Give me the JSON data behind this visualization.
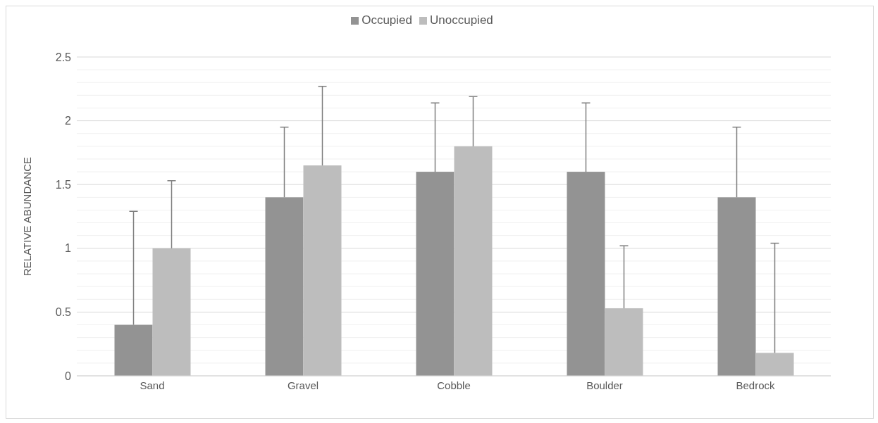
{
  "chart_data": {
    "type": "bar",
    "ylabel": "RELATIVE ABUNDANCE",
    "categories": [
      "Sand",
      "Gravel",
      "Cobble",
      "Boulder",
      "Bedrock"
    ],
    "series": [
      {
        "name": "Occupied",
        "color": "#939393",
        "values": [
          0.4,
          1.4,
          1.6,
          1.6,
          1.4
        ],
        "errors": [
          [
            0.4,
            1.29
          ],
          [
            1.4,
            1.95
          ],
          [
            1.6,
            2.14
          ],
          [
            1.6,
            2.14
          ],
          [
            1.4,
            1.95
          ]
        ]
      },
      {
        "name": "Unoccupied",
        "color": "#bdbdbd",
        "values": [
          1.0,
          1.65,
          1.8,
          0.53,
          0.18
        ],
        "errors": [
          [
            1.0,
            1.53
          ],
          [
            1.65,
            2.27
          ],
          [
            1.8,
            2.19
          ],
          [
            0.53,
            1.02
          ],
          [
            0.18,
            1.04
          ]
        ]
      }
    ],
    "ylim": [
      0,
      2.5
    ],
    "yticks": [
      0,
      {
        "value": 0.1,
        "label": null
      },
      {
        "value": 0.2,
        "label": null
      },
      {
        "value": 0.3,
        "label": null
      },
      {
        "value": 0.4,
        "label": null
      },
      0.5,
      {
        "value": 0.6,
        "label": null
      },
      {
        "value": 0.7,
        "label": null
      },
      {
        "value": 0.8,
        "label": null
      },
      {
        "value": 0.9,
        "label": null
      },
      1,
      {
        "value": 1.1,
        "label": null
      },
      {
        "value": 1.2,
        "label": null
      },
      {
        "value": 1.3,
        "label": null
      },
      {
        "value": 1.4,
        "label": null
      },
      1.5,
      {
        "value": 1.6,
        "label": null
      },
      {
        "value": 1.7,
        "label": null
      },
      {
        "value": 1.8,
        "label": null
      },
      {
        "value": 1.9,
        "label": null
      },
      2,
      {
        "value": 2.1,
        "label": null
      },
      {
        "value": 2.2,
        "label": null
      },
      {
        "value": 2.3,
        "label": null
      },
      {
        "value": 2.4,
        "label": null
      },
      2.5
    ],
    "grid": "y",
    "legend": "top"
  }
}
